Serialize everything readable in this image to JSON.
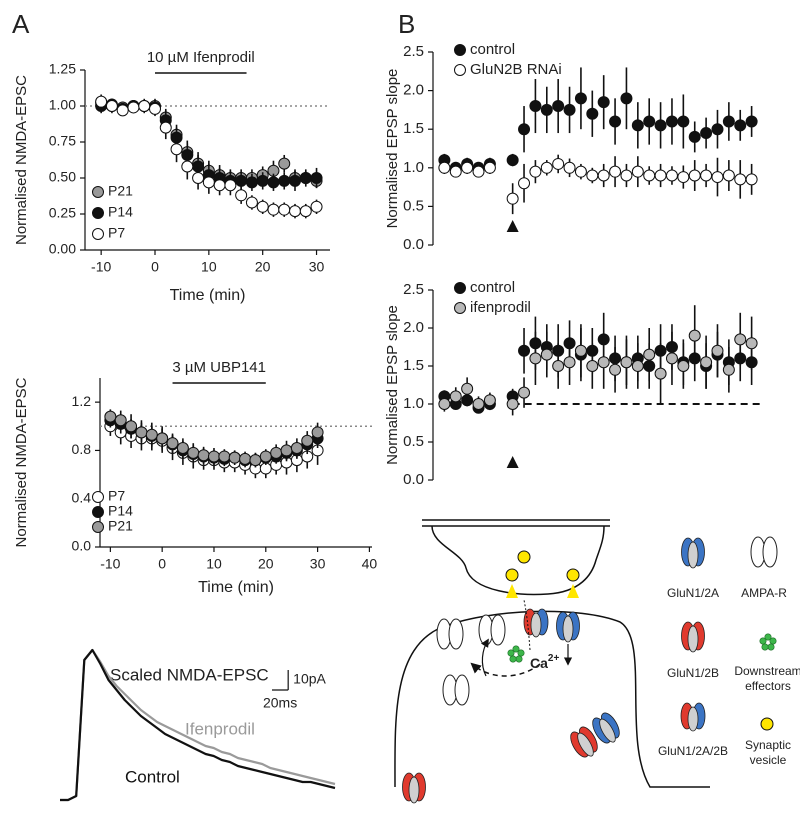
{
  "panel_labels": [
    "A",
    "B"
  ],
  "chart_data": [
    {
      "type": "scatter",
      "y_label": "Normalised NMDA-EPSC",
      "x_label": "Time (min)",
      "annotation": {
        "text": "10 µM Ifenprodil",
        "x_start": 0,
        "x_end": 17
      },
      "reference_line": {
        "y": 1,
        "style": "dotted"
      },
      "xlim": [
        -13,
        32.5
      ],
      "ylim": [
        0,
        1.25
      ],
      "xticks": [
        -10,
        0,
        10,
        20,
        30
      ],
      "yticks": [
        {
          "value": 0,
          "label": "0.00"
        },
        0.25,
        {
          "value": 0.5,
          "label": "0.50"
        },
        0.75,
        {
          "value": 1,
          "label": "1.00"
        },
        1.25
      ],
      "legend_position": "lower left",
      "x": [
        -10,
        -8,
        -6,
        -4,
        -2,
        0,
        2,
        4,
        6,
        8,
        10,
        12,
        14,
        16,
        18,
        20,
        22,
        24,
        26,
        28,
        30
      ],
      "series": [
        {
          "name": "P21",
          "color": "#9a9a9a",
          "values": [
            1.02,
            1.0,
            0.99,
            1.0,
            1.0,
            1.0,
            0.92,
            0.8,
            0.68,
            0.6,
            0.55,
            0.52,
            0.5,
            0.5,
            0.5,
            0.52,
            0.55,
            0.6,
            0.5,
            0.5,
            0.48
          ],
          "errors": [
            0.04,
            0.04,
            0.04,
            0.03,
            0.04,
            0.05,
            0.06,
            0.07,
            0.08,
            0.08,
            0.07,
            0.07,
            0.06,
            0.06,
            0.06,
            0.06,
            0.07,
            0.06,
            0.06,
            0.05,
            0.05
          ]
        },
        {
          "name": "P14",
          "color": "#111111",
          "values": [
            1.0,
            1.01,
            0.98,
            1.0,
            1.0,
            0.99,
            0.9,
            0.78,
            0.66,
            0.58,
            0.52,
            0.5,
            0.48,
            0.48,
            0.47,
            0.48,
            0.47,
            0.48,
            0.48,
            0.5,
            0.5
          ],
          "errors": [
            0.05,
            0.04,
            0.04,
            0.04,
            0.04,
            0.05,
            0.07,
            0.07,
            0.08,
            0.08,
            0.08,
            0.07,
            0.07,
            0.06,
            0.06,
            0.06,
            0.06,
            0.06,
            0.07,
            0.06,
            0.07
          ]
        },
        {
          "name": "P7",
          "color": "#ffffff",
          "values": [
            1.03,
            1.0,
            0.97,
            0.99,
            1.0,
            0.98,
            0.85,
            0.7,
            0.58,
            0.5,
            0.47,
            0.45,
            0.45,
            0.38,
            0.33,
            0.3,
            0.28,
            0.28,
            0.27,
            0.27,
            0.3
          ],
          "errors": [
            0.05,
            0.05,
            0.04,
            0.04,
            0.05,
            0.05,
            0.08,
            0.09,
            0.09,
            0.08,
            0.08,
            0.07,
            0.07,
            0.06,
            0.05,
            0.05,
            0.05,
            0.05,
            0.05,
            0.05,
            0.05
          ]
        }
      ]
    },
    {
      "type": "scatter",
      "y_label": "Normalised NMDA-EPSC",
      "x_label": "Time (min)",
      "annotation": {
        "text": "3 µM UBP141",
        "x_start": 2,
        "x_end": 20
      },
      "reference_line": {
        "y": 1,
        "style": "dotted"
      },
      "xlim": [
        -12,
        40.5
      ],
      "ylim": [
        0,
        1.4
      ],
      "xticks": [
        -10,
        0,
        10,
        20,
        30,
        40
      ],
      "yticks": [
        {
          "value": 0,
          "label": "0.0"
        },
        0.4,
        0.8,
        1.2
      ],
      "legend_position": "lower left",
      "x": [
        -10,
        -8,
        -6,
        -4,
        -2,
        0,
        2,
        4,
        6,
        8,
        10,
        12,
        14,
        16,
        18,
        20,
        22,
        24,
        26,
        28,
        30
      ],
      "series": [
        {
          "name": "P7",
          "color": "#ffffff",
          "values": [
            1.0,
            0.95,
            0.92,
            0.9,
            0.9,
            0.88,
            0.82,
            0.78,
            0.75,
            0.72,
            0.72,
            0.7,
            0.7,
            0.68,
            0.65,
            0.65,
            0.68,
            0.7,
            0.72,
            0.75,
            0.8
          ],
          "errors": [
            0.08,
            0.1,
            0.1,
            0.1,
            0.1,
            0.1,
            0.1,
            0.1,
            0.1,
            0.08,
            0.08,
            0.08,
            0.08,
            0.08,
            0.08,
            0.08,
            0.08,
            0.1,
            0.1,
            0.1,
            0.12
          ]
        },
        {
          "name": "P14",
          "color": "#111111",
          "values": [
            1.05,
            1.02,
            0.98,
            0.95,
            0.92,
            0.9,
            0.85,
            0.8,
            0.77,
            0.75,
            0.74,
            0.73,
            0.74,
            0.72,
            0.72,
            0.74,
            0.75,
            0.78,
            0.8,
            0.85,
            0.9
          ],
          "errors": [
            0.06,
            0.08,
            0.08,
            0.08,
            0.08,
            0.08,
            0.08,
            0.07,
            0.07,
            0.07,
            0.06,
            0.06,
            0.06,
            0.06,
            0.06,
            0.06,
            0.06,
            0.07,
            0.07,
            0.08,
            0.08
          ]
        },
        {
          "name": "P21",
          "color": "#9a9a9a",
          "values": [
            1.08,
            1.05,
            1.0,
            0.95,
            0.93,
            0.9,
            0.86,
            0.82,
            0.78,
            0.76,
            0.75,
            0.75,
            0.74,
            0.73,
            0.72,
            0.75,
            0.78,
            0.8,
            0.82,
            0.88,
            0.95
          ],
          "errors": [
            0.06,
            0.08,
            0.1,
            0.1,
            0.1,
            0.1,
            0.08,
            0.08,
            0.08,
            0.07,
            0.07,
            0.06,
            0.06,
            0.06,
            0.06,
            0.06,
            0.07,
            0.08,
            0.08,
            0.08,
            0.08
          ]
        }
      ]
    },
    {
      "type": "line",
      "title": "Scaled NMDA-EPSC",
      "xlim": [
        0,
        340
      ],
      "ylim": [
        -5,
        75
      ],
      "scalebar": {
        "x": 20,
        "y": 10,
        "x_label": "20ms",
        "y_label": "10pA"
      },
      "x": [
        0,
        10,
        20,
        30,
        40,
        50,
        60,
        70,
        80,
        90,
        100,
        110,
        120,
        130,
        140,
        150,
        160,
        170,
        180,
        190,
        200,
        210,
        220,
        230,
        240,
        250,
        260,
        270,
        280,
        290,
        300,
        310,
        320,
        330,
        340
      ],
      "series": [
        {
          "name": "Ifenprodil",
          "color": "#9a9a9a",
          "values": [
            0,
            0,
            2,
            70,
            75,
            69,
            62,
            57,
            53,
            49,
            45,
            42,
            39,
            37,
            35,
            33,
            31,
            29,
            27,
            26,
            24,
            23,
            21,
            20,
            19,
            18,
            16,
            15,
            14,
            13,
            12,
            11,
            10,
            9,
            8
          ]
        },
        {
          "name": "Control",
          "color": "#111111",
          "values": [
            0,
            0,
            2,
            70,
            75,
            68,
            60,
            55,
            50,
            46,
            42,
            39,
            36,
            33,
            31,
            29,
            27,
            25,
            23,
            22,
            20,
            19,
            17,
            16,
            15,
            14,
            13,
            12,
            11,
            10,
            9,
            9,
            8,
            7,
            6
          ]
        }
      ]
    },
    {
      "type": "scatter",
      "y_label": "Normalised EPSP slope",
      "arrow_x": 7,
      "xlim": [
        0,
        29
      ],
      "ylim": [
        0,
        2.5
      ],
      "yticks": [
        {
          "value": 0,
          "label": "0.0"
        },
        0.5,
        {
          "value": 1,
          "label": "1.0"
        },
        1.5,
        {
          "value": 2,
          "label": "2.0"
        },
        2.5
      ],
      "legend_position": "upper left",
      "x": [
        1,
        2,
        3,
        4,
        5,
        7,
        8,
        9,
        10,
        11,
        12,
        13,
        14,
        15,
        16,
        17,
        18,
        19,
        20,
        21,
        22,
        23,
        24,
        25,
        26,
        27,
        28
      ],
      "series": [
        {
          "name": "control",
          "color": "#111111",
          "values": [
            1.1,
            1.0,
            1.05,
            1.0,
            1.05,
            1.1,
            1.5,
            1.8,
            1.75,
            1.8,
            1.75,
            1.9,
            1.7,
            1.85,
            1.6,
            1.9,
            1.55,
            1.6,
            1.55,
            1.6,
            1.6,
            1.4,
            1.45,
            1.5,
            1.6,
            1.55,
            1.6
          ],
          "errors": [
            0.08,
            0.06,
            0.08,
            0.06,
            0.08,
            0.08,
            0.3,
            0.35,
            0.3,
            0.35,
            0.3,
            0.4,
            0.3,
            0.35,
            0.3,
            0.4,
            0.3,
            0.3,
            0.3,
            0.3,
            0.35,
            0.2,
            0.2,
            0.25,
            0.25,
            0.2,
            0.2
          ]
        },
        {
          "name": "GluN2B RNAi",
          "color": "#ffffff",
          "values": [
            1.0,
            0.95,
            1.0,
            0.95,
            1.0,
            0.6,
            0.8,
            0.95,
            1.0,
            1.05,
            1.0,
            0.95,
            0.9,
            0.9,
            0.95,
            0.9,
            0.95,
            0.9,
            0.9,
            0.9,
            0.88,
            0.9,
            0.9,
            0.88,
            0.9,
            0.85,
            0.85
          ],
          "errors": [
            0.08,
            0.06,
            0.08,
            0.06,
            0.08,
            0.2,
            0.25,
            0.15,
            0.1,
            0.12,
            0.12,
            0.1,
            0.1,
            0.15,
            0.2,
            0.15,
            0.2,
            0.12,
            0.15,
            0.12,
            0.15,
            0.2,
            0.15,
            0.25,
            0.2,
            0.25,
            0.2
          ]
        }
      ]
    },
    {
      "type": "scatter",
      "y_label": "Normalised EPSP slope",
      "arrow_x": 7,
      "reference_line": {
        "y": 1,
        "x_start": 7,
        "style": "dashed"
      },
      "xlim": [
        0,
        29
      ],
      "ylim": [
        0,
        2.5
      ],
      "yticks": [
        {
          "value": 0,
          "label": "0.0"
        },
        0.5,
        {
          "value": 1,
          "label": "1.0"
        },
        1.5,
        {
          "value": 2,
          "label": "2.0"
        },
        2.5
      ],
      "legend_position": "upper left",
      "x": [
        1,
        2,
        3,
        4,
        5,
        7,
        8,
        9,
        10,
        11,
        12,
        13,
        14,
        15,
        16,
        17,
        18,
        19,
        20,
        21,
        22,
        23,
        24,
        25,
        26,
        27,
        28
      ],
      "series": [
        {
          "name": "control",
          "color": "#111111",
          "values": [
            1.1,
            1.0,
            1.05,
            0.95,
            1.0,
            1.1,
            1.7,
            1.8,
            1.75,
            1.7,
            1.8,
            1.65,
            1.7,
            1.85,
            1.6,
            1.55,
            1.6,
            1.5,
            1.7,
            1.75,
            1.55,
            1.6,
            1.5,
            1.65,
            1.55,
            1.6,
            1.55
          ],
          "errors": [
            0.08,
            0.06,
            0.08,
            0.06,
            0.08,
            0.1,
            0.3,
            0.35,
            0.3,
            0.35,
            0.3,
            0.35,
            0.3,
            0.35,
            0.3,
            0.35,
            0.3,
            0.3,
            0.35,
            0.3,
            0.3,
            0.3,
            0.3,
            0.3,
            0.3,
            0.3,
            0.3
          ]
        },
        {
          "name": "ifenprodil",
          "color": "#b8b8b8",
          "values": [
            1.0,
            1.1,
            1.2,
            1.0,
            1.05,
            1.0,
            1.15,
            1.6,
            1.65,
            1.5,
            1.55,
            1.7,
            1.5,
            1.55,
            1.45,
            1.55,
            1.5,
            1.65,
            1.4,
            1.6,
            1.5,
            1.9,
            1.55,
            1.7,
            1.45,
            1.85,
            1.8
          ],
          "errors": [
            0.1,
            0.12,
            0.15,
            0.1,
            0.1,
            0.15,
            0.2,
            0.35,
            0.3,
            0.3,
            0.3,
            0.35,
            0.3,
            0.35,
            0.3,
            0.3,
            0.3,
            0.35,
            0.4,
            0.35,
            0.3,
            0.4,
            0.35,
            0.35,
            0.3,
            0.35,
            0.35
          ]
        }
      ]
    }
  ],
  "diagram": {
    "legend": {
      "glun1_2a": "GluN1/2A",
      "ampa_r": "AMPA-R",
      "glun1_2b": "GluN1/2B",
      "effectors": [
        "Downstream",
        "effectors"
      ],
      "glun1_2a_2b": "GluN1/2A/2B",
      "vesicle": [
        "Synaptic",
        "vesicle"
      ]
    },
    "ion": {
      "symbol": "Ca",
      "charge": "2+"
    }
  }
}
